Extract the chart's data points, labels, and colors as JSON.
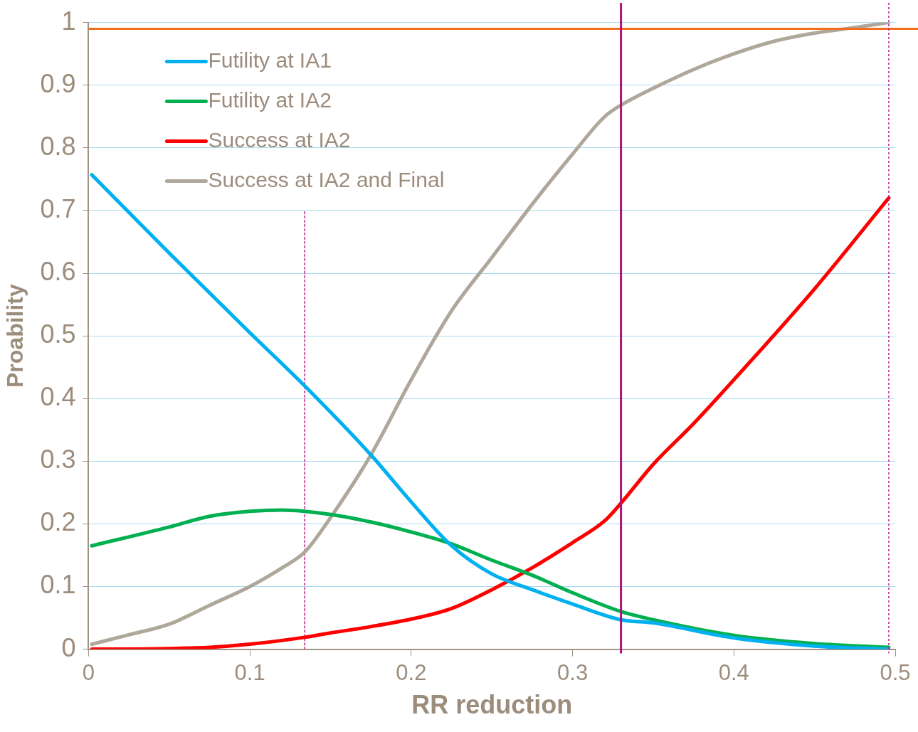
{
  "chart_data": {
    "type": "line",
    "xlabel": "RR reduction",
    "ylabel": "Proability",
    "xlim": [
      0,
      0.5
    ],
    "ylim": [
      0,
      1
    ],
    "xticks": [
      0,
      0.1,
      0.2,
      0.3,
      0.4,
      0.5
    ],
    "yticks": [
      0,
      0.1,
      0.2,
      0.3,
      0.4,
      0.5,
      0.6,
      0.7,
      0.8,
      0.9,
      1
    ],
    "grid": "y",
    "legend": "top left",
    "marker": "none",
    "line_style": "solid",
    "series": [
      {
        "name": "Futility at IA1",
        "color": "#00b0f0",
        "x": [
          0.002,
          0.05,
          0.1,
          0.134,
          0.175,
          0.2,
          0.225,
          0.25,
          0.275,
          0.3,
          0.33,
          0.35,
          0.4,
          0.45,
          0.496
        ],
        "values": [
          0.757,
          0.632,
          0.505,
          0.42,
          0.31,
          0.235,
          0.165,
          0.12,
          0.095,
          0.072,
          0.047,
          0.042,
          0.018,
          0.005,
          0
        ]
      },
      {
        "name": "Futility at IA2",
        "color": "#00b050",
        "x": [
          0.002,
          0.05,
          0.075,
          0.1,
          0.12,
          0.15,
          0.175,
          0.2,
          0.225,
          0.25,
          0.275,
          0.3,
          0.33,
          0.35,
          0.4,
          0.45,
          0.496
        ],
        "values": [
          0.165,
          0.195,
          0.212,
          0.22,
          0.222,
          0.215,
          0.203,
          0.187,
          0.168,
          0.142,
          0.118,
          0.09,
          0.06,
          0.047,
          0.022,
          0.009,
          0.003
        ]
      },
      {
        "name": "Success at IA2",
        "color": "#ff0000",
        "x": [
          0.002,
          0.05,
          0.075,
          0.1,
          0.134,
          0.15,
          0.175,
          0.2,
          0.225,
          0.25,
          0.275,
          0.3,
          0.32,
          0.33,
          0.35,
          0.375,
          0.4,
          0.45,
          0.496
        ],
        "values": [
          0,
          0.001,
          0.003,
          0.008,
          0.019,
          0.026,
          0.036,
          0.048,
          0.065,
          0.095,
          0.13,
          0.17,
          0.205,
          0.233,
          0.295,
          0.36,
          0.43,
          0.575,
          0.72
        ]
      },
      {
        "name": "Success at IA2 and Final",
        "color": "#aea79a",
        "x": [
          0.002,
          0.025,
          0.05,
          0.075,
          0.1,
          0.12,
          0.134,
          0.15,
          0.175,
          0.2,
          0.225,
          0.25,
          0.275,
          0.3,
          0.32,
          0.33,
          0.35,
          0.375,
          0.4,
          0.425,
          0.45,
          0.475,
          0.496
        ],
        "values": [
          0.008,
          0.023,
          0.04,
          0.07,
          0.1,
          0.13,
          0.155,
          0.21,
          0.31,
          0.43,
          0.54,
          0.625,
          0.71,
          0.79,
          0.85,
          0.868,
          0.895,
          0.925,
          0.95,
          0.97,
          0.983,
          0.992,
          1
        ]
      },
      {
        "color": "#c0208a",
        "line_style": "dotted",
        "x": [
          0.134,
          0.134
        ],
        "values": [
          0,
          0.7
        ]
      }
    ],
    "ref_lines": [
      {
        "axis": "y",
        "value": 0.99,
        "color": "#f07020",
        "line_style": "solid"
      },
      {
        "axis": "x",
        "value": 0.33,
        "color": "#b0107a",
        "line_style": "solid"
      },
      {
        "axis": "x",
        "value": 0.496,
        "color": "#c0208a",
        "line_style": "dotted"
      }
    ]
  }
}
